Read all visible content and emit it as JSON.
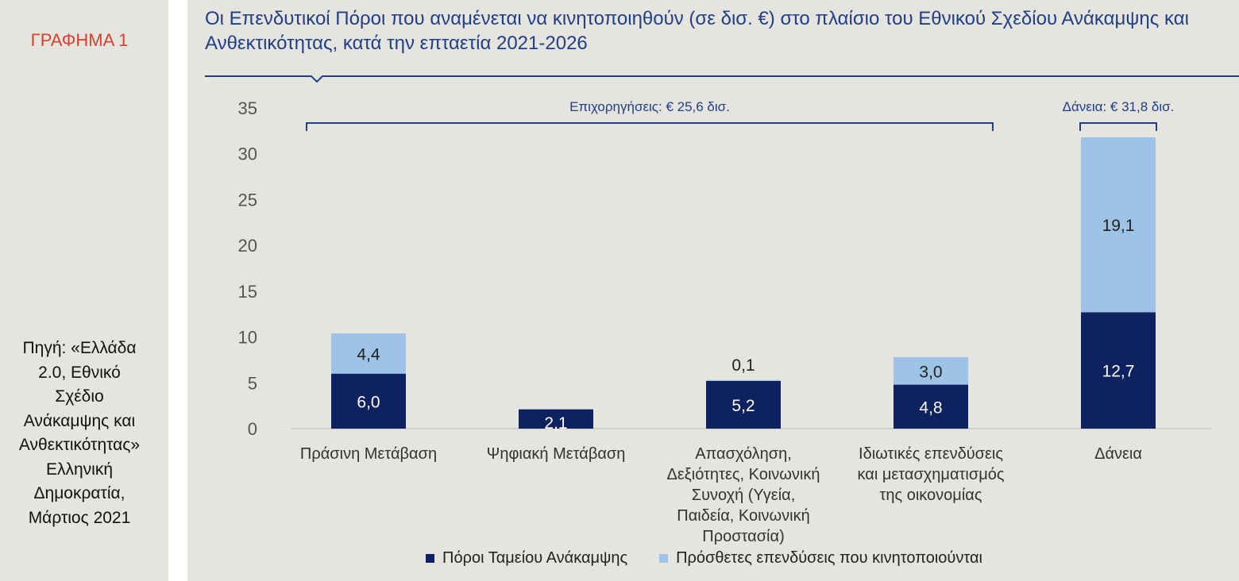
{
  "side": {
    "figure_label": "ΓΡΑΦΗΜΑ 1",
    "source_lines": [
      "Πηγή: «Ελλάδα",
      "2.0,  Εθνικό",
      "Σχέδιο",
      "Ανάκαμψης και",
      "Ανθεκτικότητας»",
      "Ελληνική",
      "Δημοκρατία,",
      "Μάρτιος 2021"
    ]
  },
  "colors": {
    "dark_series": "#0e2160",
    "light_series": "#9dc3e6",
    "title": "#1f3f87",
    "label_red": "#d9412c"
  },
  "chart_data": {
    "type": "bar",
    "stacked": true,
    "title": "Οι Επενδυτικοί Πόροι που αναμένεται να κινητοποιηθούν (σε δισ. €) στο πλαίσιο του Εθνικού Σχεδίου Ανάκαμψης και Ανθεκτικότητας, κατά την επταετία 2021-2026",
    "categories": [
      [
        "Πράσινη Μετάβαση"
      ],
      [
        "Ψηφιακή Μετάβαση"
      ],
      [
        "Απασχόληση,",
        "Δεξιότητες, Κοινωνική",
        "Συνοχή (Υγεία,",
        "Παιδεία, Κοινωνική",
        "Προστασία)"
      ],
      [
        "Ιδιωτικές επενδύσεις",
        "και μετασχηματισμός",
        "της οικονομίας"
      ],
      [
        "Δάνεια"
      ]
    ],
    "series": [
      {
        "name": "Πόροι Ταμείου Ανάκαμψης",
        "values": [
          6.0,
          2.1,
          5.2,
          4.8,
          12.7
        ],
        "labels": [
          "6,0",
          "2,1",
          "5,2",
          "4,8",
          "12,7"
        ]
      },
      {
        "name": "Πρόσθετες επενδύσεις που κινητοποιούνται",
        "values": [
          4.4,
          0,
          0.1,
          3.0,
          19.1
        ],
        "labels": [
          "4,4",
          "",
          "0,1",
          "3,0",
          "19,1"
        ]
      }
    ],
    "ylim": [
      0,
      35
    ],
    "yticks": [
      0,
      5,
      10,
      15,
      20,
      25,
      30,
      35
    ],
    "annotations": [
      {
        "text": "Επιχορηγήσεις: € 25,6 δισ.",
        "from_category": 0,
        "to_category": 3
      },
      {
        "text": "Δάνεια: € 31,8 δισ.",
        "from_category": 4,
        "to_category": 4
      }
    ],
    "legend_position": "bottom"
  }
}
